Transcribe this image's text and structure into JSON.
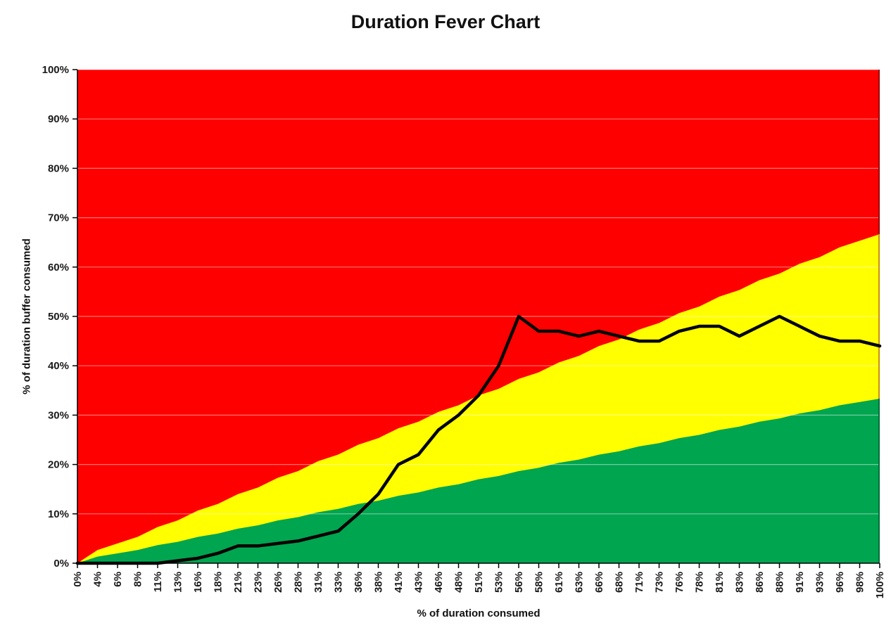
{
  "chart_data": {
    "type": "area",
    "subtype": "fever-chart (stacked threshold zones + status line)",
    "title": "Duration Fever Chart",
    "xlabel": "% of duration consumed",
    "ylabel": "% of duration buffer consumed",
    "xlim": [
      0,
      100
    ],
    "ylim": [
      0,
      100
    ],
    "grid": "horizontal gridlines every 10%, translucent white, drawn over zones",
    "legend": "none",
    "x_tick_labels": [
      "0%",
      "4%",
      "6%",
      "8%",
      "11%",
      "13%",
      "16%",
      "18%",
      "21%",
      "23%",
      "26%",
      "28%",
      "31%",
      "33%",
      "36%",
      "38%",
      "41%",
      "43%",
      "46%",
      "48%",
      "51%",
      "53%",
      "56%",
      "58%",
      "61%",
      "63%",
      "66%",
      "68%",
      "71%",
      "73%",
      "76%",
      "78%",
      "81%",
      "83%",
      "86%",
      "88%",
      "91%",
      "93%",
      "96%",
      "98%",
      "100%"
    ],
    "x_values": [
      0,
      4,
      6,
      8,
      11,
      13,
      16,
      18,
      21,
      23,
      26,
      28,
      31,
      33,
      36,
      38,
      41,
      43,
      46,
      48,
      51,
      53,
      56,
      58,
      61,
      63,
      66,
      68,
      71,
      73,
      76,
      78,
      81,
      83,
      86,
      88,
      91,
      93,
      96,
      98,
      100
    ],
    "y_tick_labels": [
      "0%",
      "10%",
      "20%",
      "30%",
      "40%",
      "50%",
      "60%",
      "70%",
      "80%",
      "90%",
      "100%"
    ],
    "y_tick_values": [
      0,
      10,
      20,
      30,
      40,
      50,
      60,
      70,
      80,
      90,
      100
    ],
    "zones": {
      "red": {
        "color": "#FF0000",
        "note": "fills from yellow boundary up to 100%"
      },
      "yellow": {
        "color": "#FFFF00",
        "top_fraction_of_x": 0.6667,
        "note": "upper boundary rises from (0%,0%) to (100%,66.7%)"
      },
      "green": {
        "color": "#00A550",
        "top_fraction_of_x": 0.3333,
        "note": "upper boundary rises from (0%,0%) to (100%,33.3%)"
      }
    },
    "series": [
      {
        "name": "buffer-consumed-line",
        "color": "#000000",
        "values": [
          0,
          0,
          0,
          0,
          0,
          0.5,
          1,
          2,
          3.5,
          3.5,
          4,
          4.5,
          5.5,
          6.5,
          10,
          14,
          20,
          22,
          27,
          30,
          34,
          40,
          50,
          47,
          47,
          46,
          47,
          46,
          45,
          45,
          47,
          48,
          48,
          46,
          48,
          50,
          48,
          46,
          45,
          45,
          44
        ]
      }
    ],
    "colors": {
      "gridline": "rgba(255,255,255,0.45)",
      "axis": "#000000",
      "tick_label": "#1a1a1a",
      "right_border_red_zone": "#A00000",
      "right_border_yellow_zone": "#C89000",
      "right_border_green_zone": "#007038"
    }
  }
}
